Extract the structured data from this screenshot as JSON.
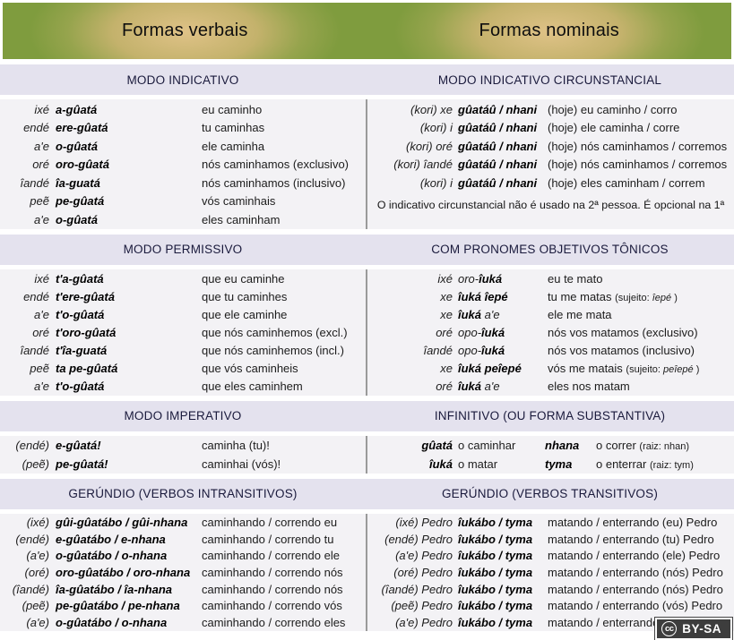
{
  "colors": {
    "green": "#7f9c3e",
    "glow": "#dfc287",
    "strip": "#e4e2ee",
    "striptext": "#1a1a3c",
    "content": "#f3f2f5"
  },
  "header": {
    "left_title": "Formas verbais",
    "right_title": "Formas nominais"
  },
  "license": {
    "icon": "cc",
    "label": "BY-SA"
  },
  "sections": [
    {
      "left": {
        "title": "MODO INDICATIVO",
        "cols": [
          "c-pron",
          "c-verb",
          "c-trans"
        ],
        "colnames": [
          "pronoun-cell",
          "verb-cell",
          "translation-cell"
        ],
        "rows": [
          [
            [
              {
                "t": "ixé"
              }
            ],
            [
              {
                "t": "a-gûatá"
              }
            ],
            [
              {
                "t": "eu caminho"
              }
            ]
          ],
          [
            [
              {
                "t": "endé"
              }
            ],
            [
              {
                "t": "ere-gûatá"
              }
            ],
            [
              {
                "t": "tu caminhas"
              }
            ]
          ],
          [
            [
              {
                "t": "a'e"
              }
            ],
            [
              {
                "t": "o-gûatá"
              }
            ],
            [
              {
                "t": "ele caminha"
              }
            ]
          ],
          [
            [
              {
                "t": "oré"
              }
            ],
            [
              {
                "t": "oro-gûatá"
              }
            ],
            [
              {
                "t": "nós caminhamos (exclusivo)"
              }
            ]
          ],
          [
            [
              {
                "t": "îandé"
              }
            ],
            [
              {
                "t": "îa-guatá"
              }
            ],
            [
              {
                "t": "nós caminhamos (inclusivo)"
              }
            ]
          ],
          [
            [
              {
                "t": "peẽ"
              }
            ],
            [
              {
                "t": "pe-gûatá"
              }
            ],
            [
              {
                "t": "vós caminhais"
              }
            ]
          ],
          [
            [
              {
                "t": "a'e"
              }
            ],
            [
              {
                "t": "o-gûatá"
              }
            ],
            [
              {
                "t": "eles caminham"
              }
            ]
          ]
        ]
      },
      "right": {
        "title": "MODO INDICATIVO CIRCUNSTANCIAL",
        "cols": [
          "c-pron-r",
          "c-verb-r",
          "c-trans-r"
        ],
        "colnames": [
          "pronoun-cell",
          "verb-cell",
          "translation-cell"
        ],
        "rows": [
          [
            [
              {
                "t": "(kori) xe"
              }
            ],
            [
              {
                "t": "gûatáû / nhani"
              }
            ],
            [
              {
                "t": "(hoje) eu caminho / corro"
              }
            ]
          ],
          [
            [
              {
                "t": "(kori) i"
              }
            ],
            [
              {
                "t": "gûatáû / nhani"
              }
            ],
            [
              {
                "t": "(hoje) ele caminha / corre"
              }
            ]
          ],
          [
            [
              {
                "t": "(kori) oré"
              }
            ],
            [
              {
                "t": "gûatáû / nhani"
              }
            ],
            [
              {
                "t": "(hoje) nós caminhamos / corremos"
              }
            ]
          ],
          [
            [
              {
                "t": "(kori) îandé"
              }
            ],
            [
              {
                "t": "gûatáû / nhani"
              }
            ],
            [
              {
                "t": "(hoje) nós caminhamos / corremos"
              }
            ]
          ],
          [
            [
              {
                "t": "(kori) i"
              }
            ],
            [
              {
                "t": "gûatáû / nhani"
              }
            ],
            [
              {
                "t": "(hoje) eles caminham / correm"
              }
            ]
          ]
        ],
        "footnote": "O indicativo circunstancial não é usado na 2ª pessoa. É opcional na 1ª"
      }
    },
    {
      "left": {
        "title": "MODO PERMISSIVO",
        "cols": [
          "c-pron",
          "c-verb",
          "c-trans"
        ],
        "colnames": [
          "pronoun-cell",
          "verb-cell",
          "translation-cell"
        ],
        "rows": [
          [
            [
              {
                "t": "ixé"
              }
            ],
            [
              {
                "t": "t'a-gûatá"
              }
            ],
            [
              {
                "t": "que eu caminhe"
              }
            ]
          ],
          [
            [
              {
                "t": "endé"
              }
            ],
            [
              {
                "t": "t'ere-gûatá"
              }
            ],
            [
              {
                "t": "que tu caminhes"
              }
            ]
          ],
          [
            [
              {
                "t": "a'e"
              }
            ],
            [
              {
                "t": "t'o-gûatá"
              }
            ],
            [
              {
                "t": "que ele caminhe"
              }
            ]
          ],
          [
            [
              {
                "t": "oré"
              }
            ],
            [
              {
                "t": "t'oro-gûatá"
              }
            ],
            [
              {
                "t": "que nós caminhemos (excl.)"
              }
            ]
          ],
          [
            [
              {
                "t": "îandé"
              }
            ],
            [
              {
                "t": "t'îa-guatá"
              }
            ],
            [
              {
                "t": "que nós caminhemos (incl.)"
              }
            ]
          ],
          [
            [
              {
                "t": "peẽ"
              }
            ],
            [
              {
                "t": "ta pe-gûatá"
              }
            ],
            [
              {
                "t": "que vós caminheis"
              }
            ]
          ],
          [
            [
              {
                "t": "a'e"
              }
            ],
            [
              {
                "t": "t'o-gûatá"
              }
            ],
            [
              {
                "t": "que eles caminhem"
              }
            ]
          ]
        ]
      },
      "right": {
        "title": "COM PRONOMES OBJETIVOS TÔNICOS",
        "cols": [
          "c-pron-r",
          "c-verb-r",
          "c-trans-r"
        ],
        "colnames": [
          "pronoun-cell",
          "verb-cell",
          "translation-cell"
        ],
        "rows": [
          [
            [
              {
                "t": "ixé"
              }
            ],
            [
              {
                "t": "oro-",
                "s": "lt"
              },
              {
                "t": "îuká"
              }
            ],
            [
              {
                "t": "eu te mato"
              }
            ]
          ],
          [
            [
              {
                "t": "xe"
              }
            ],
            [
              {
                "t": "îuká îepé"
              }
            ],
            [
              {
                "t": "tu me matas "
              },
              {
                "t": "(sujeito: ",
                "s": "sm"
              },
              {
                "t": "îepé",
                "s": "smi"
              },
              {
                "t": " )",
                "s": "sm"
              }
            ]
          ],
          [
            [
              {
                "t": "xe"
              }
            ],
            [
              {
                "t": "îuká"
              },
              {
                "t": " a'e",
                "s": "lt"
              }
            ],
            [
              {
                "t": "ele me mata"
              }
            ]
          ],
          [
            [
              {
                "t": "oré"
              }
            ],
            [
              {
                "t": "opo-",
                "s": "lt"
              },
              {
                "t": "îuká"
              }
            ],
            [
              {
                "t": "nós vos matamos (exclusivo)"
              }
            ]
          ],
          [
            [
              {
                "t": "îandé"
              }
            ],
            [
              {
                "t": "opo-",
                "s": "lt"
              },
              {
                "t": "îuká"
              }
            ],
            [
              {
                "t": "nós vos matamos (inclusivo)"
              }
            ]
          ],
          [
            [
              {
                "t": "xe"
              }
            ],
            [
              {
                "t": "îuká peîepé"
              }
            ],
            [
              {
                "t": "vós me matais "
              },
              {
                "t": "(sujeito: ",
                "s": "sm"
              },
              {
                "t": "peîepé",
                "s": "smi"
              },
              {
                "t": " )",
                "s": "sm"
              }
            ]
          ],
          [
            [
              {
                "t": "oré"
              }
            ],
            [
              {
                "t": "îuká"
              },
              {
                "t": " a'e",
                "s": "lt"
              }
            ],
            [
              {
                "t": "eles nos matam"
              }
            ]
          ]
        ]
      }
    },
    {
      "left": {
        "title": "MODO IMPERATIVO",
        "cols": [
          "c-pron",
          "c-verb",
          "c-trans"
        ],
        "colnames": [
          "pronoun-cell",
          "verb-cell",
          "translation-cell"
        ],
        "rows": [
          [
            [
              {
                "t": "(endé)"
              }
            ],
            [
              {
                "t": "e-gûatá!"
              }
            ],
            [
              {
                "t": "caminha (tu)!"
              }
            ]
          ],
          [
            [
              {
                "t": "(peẽ)"
              }
            ],
            [
              {
                "t": "pe-gûatá!"
              }
            ],
            [
              {
                "t": "caminhai (vós)!"
              }
            ]
          ]
        ]
      },
      "right": {
        "title": "INFINITIVO (OU FORMA SUBSTANTIVA)",
        "cols": [
          "c-iv1",
          "c-it1",
          "c-iv2",
          "c-it2"
        ],
        "colnames": [
          "verb-cell",
          "translation-cell",
          "verb-cell",
          "translation-cell"
        ],
        "rows": [
          [
            [
              {
                "t": "gûatá"
              }
            ],
            [
              {
                "t": "o caminhar"
              }
            ],
            [
              {
                "t": "nhana"
              }
            ],
            [
              {
                "t": "o correr "
              },
              {
                "t": "(raiz: nhan)",
                "s": "sm"
              }
            ]
          ],
          [
            [
              {
                "t": "îuká"
              }
            ],
            [
              {
                "t": "o matar"
              }
            ],
            [
              {
                "t": "tyma"
              }
            ],
            [
              {
                "t": "o enterrar "
              },
              {
                "t": "(raiz: tym)",
                "s": "sm"
              }
            ]
          ]
        ]
      }
    },
    {
      "left": {
        "title": "GERÚNDIO (VERBOS INTRANSITIVOS)",
        "cols": [
          "c-pron",
          "c-verb",
          "c-trans"
        ],
        "colnames": [
          "pronoun-cell",
          "verb-cell",
          "translation-cell"
        ],
        "rows": [
          [
            [
              {
                "t": "(ixé)"
              }
            ],
            [
              {
                "t": "gûi-gûatábo / gûi-nhana"
              }
            ],
            [
              {
                "t": "caminhando / correndo eu"
              }
            ]
          ],
          [
            [
              {
                "t": "(endé)"
              }
            ],
            [
              {
                "t": "e-gûatábo / e-nhana"
              }
            ],
            [
              {
                "t": "caminhando / correndo tu"
              }
            ]
          ],
          [
            [
              {
                "t": "(a'e)"
              }
            ],
            [
              {
                "t": "o-gûatábo / o-nhana"
              }
            ],
            [
              {
                "t": "caminhando / correndo ele"
              }
            ]
          ],
          [
            [
              {
                "t": "(oré)"
              }
            ],
            [
              {
                "t": "oro-gûatábo / oro-nhana"
              }
            ],
            [
              {
                "t": "caminhando / correndo nós"
              }
            ]
          ],
          [
            [
              {
                "t": "(îandé)"
              }
            ],
            [
              {
                "t": "îa-gûatábo / îa-nhana"
              }
            ],
            [
              {
                "t": "caminhando / correndo nós"
              }
            ]
          ],
          [
            [
              {
                "t": "(peẽ)"
              }
            ],
            [
              {
                "t": "pe-gûatábo / pe-nhana"
              }
            ],
            [
              {
                "t": "caminhando / correndo vós"
              }
            ]
          ],
          [
            [
              {
                "t": "(a'e)"
              }
            ],
            [
              {
                "t": "o-gûatábo / o-nhana"
              }
            ],
            [
              {
                "t": "caminhando / correndo eles"
              }
            ]
          ]
        ]
      },
      "right": {
        "title": "GERÚNDIO (VERBOS TRANSITIVOS)",
        "cols": [
          "c-pron-r",
          "c-verb-r",
          "c-trans-r"
        ],
        "colnames": [
          "pronoun-cell",
          "verb-cell",
          "translation-cell"
        ],
        "rows": [
          [
            [
              {
                "t": "(ixé) Pedro"
              }
            ],
            [
              {
                "t": "îukábo / tyma"
              }
            ],
            [
              {
                "t": "matando / enterrando (eu) Pedro"
              }
            ]
          ],
          [
            [
              {
                "t": "(endé) Pedro"
              }
            ],
            [
              {
                "t": "îukábo / tyma"
              }
            ],
            [
              {
                "t": "matando / enterrando (tu) Pedro"
              }
            ]
          ],
          [
            [
              {
                "t": "(a'e) Pedro"
              }
            ],
            [
              {
                "t": "îukábo / tyma"
              }
            ],
            [
              {
                "t": "matando / enterrando (ele) Pedro"
              }
            ]
          ],
          [
            [
              {
                "t": "(oré) Pedro"
              }
            ],
            [
              {
                "t": "îukábo / tyma"
              }
            ],
            [
              {
                "t": "matando / enterrando (nós) Pedro"
              }
            ]
          ],
          [
            [
              {
                "t": "(îandé) Pedro"
              }
            ],
            [
              {
                "t": "îukábo / tyma"
              }
            ],
            [
              {
                "t": "matando / enterrando (nós) Pedro"
              }
            ]
          ],
          [
            [
              {
                "t": "(peẽ) Pedro"
              }
            ],
            [
              {
                "t": "îukábo / tyma"
              }
            ],
            [
              {
                "t": "matando / enterrando (vós) Pedro"
              }
            ]
          ],
          [
            [
              {
                "t": "(a'e) Pedro"
              }
            ],
            [
              {
                "t": "îukábo / tyma"
              }
            ],
            [
              {
                "t": "matando / enterrando (eles) Pedro"
              }
            ]
          ]
        ]
      }
    }
  ]
}
